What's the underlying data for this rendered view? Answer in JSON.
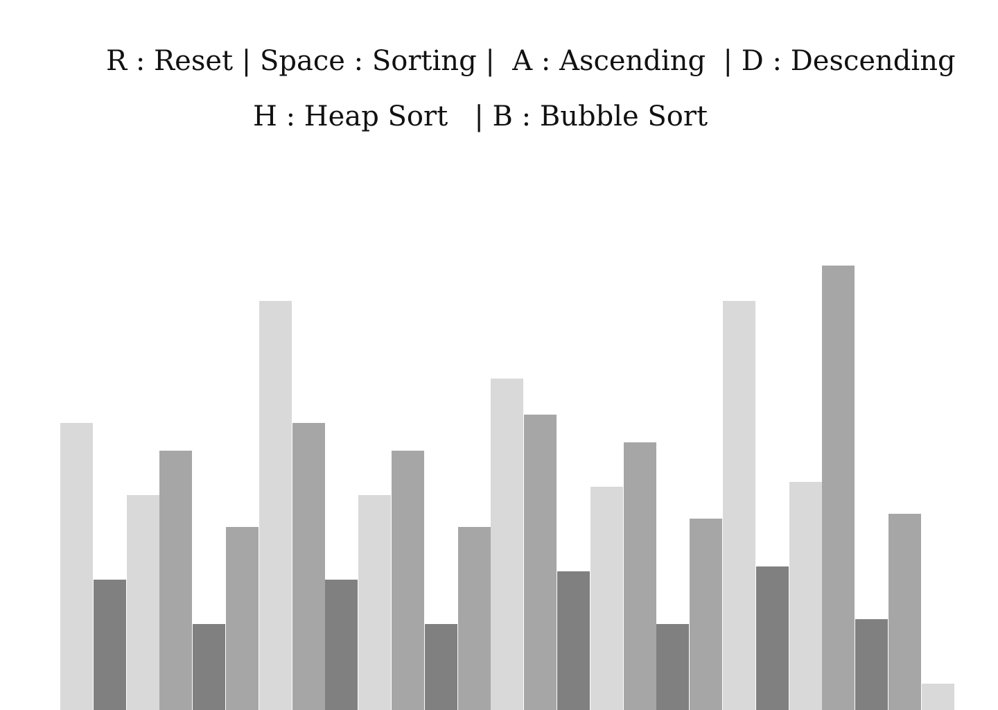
{
  "controls": {
    "line1": "R : Reset | Space : Sorting |  A : Ascending  | D : Descending",
    "line2": "H : Heap Sort   | B : Bubble Sort"
  },
  "colors": {
    "background": "#ffffff",
    "text": "#111111",
    "shades": {
      "light": "#d9d9d9",
      "mid": "#a6a6a6",
      "dark": "#808080"
    }
  },
  "array": {
    "values": [
      414,
      188,
      310,
      374,
      124,
      264,
      590,
      414,
      188,
      310,
      374,
      124,
      264,
      478,
      426,
      200,
      322,
      386,
      124,
      276,
      590,
      207,
      329,
      641,
      131,
      283,
      38
    ],
    "shades": [
      "light",
      "dark",
      "light",
      "mid",
      "dark",
      "mid",
      "light",
      "mid",
      "dark",
      "light",
      "mid",
      "dark",
      "mid",
      "light",
      "mid",
      "dark",
      "light",
      "mid",
      "dark",
      "mid",
      "light",
      "dark",
      "light",
      "mid",
      "dark",
      "mid",
      "light"
    ]
  }
}
